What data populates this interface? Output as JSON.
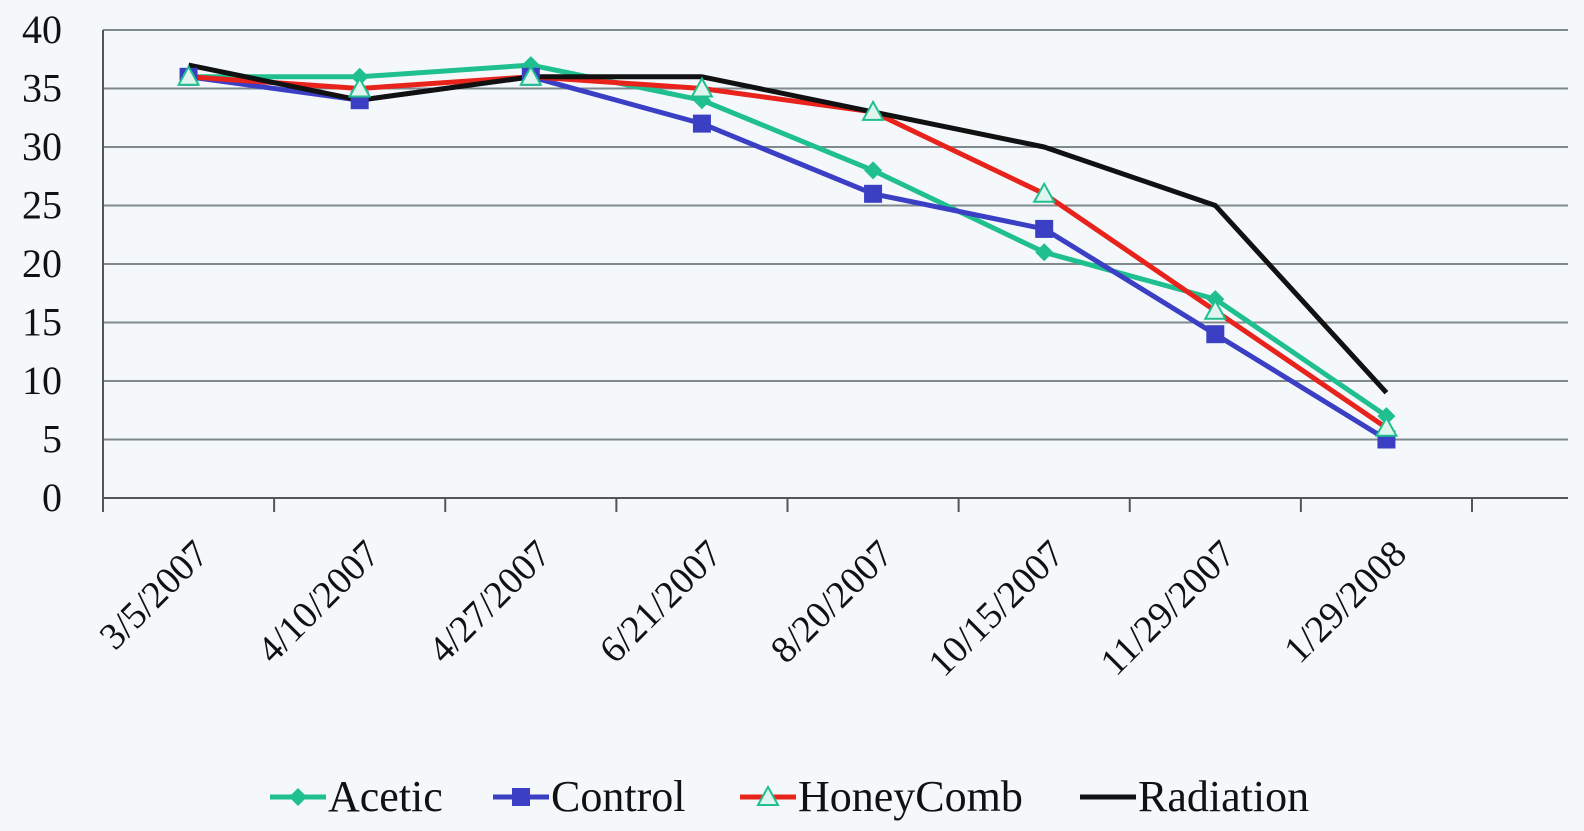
{
  "chart_data": {
    "type": "line",
    "categories": [
      "3/5/2007",
      "4/10/2007",
      "4/27/2007",
      "6/21/2007",
      "8/20/2007",
      "10/15/2007",
      "11/29/2007",
      "1/29/2008"
    ],
    "ylim": [
      0,
      40
    ],
    "yticks": [
      0,
      5,
      10,
      15,
      20,
      25,
      30,
      35,
      40
    ],
    "grid": true,
    "legend": "bottom",
    "series": [
      {
        "name": "Acetic",
        "color": "#1fbf8f",
        "marker": "diamond",
        "values": [
          36,
          36,
          37,
          34,
          28,
          21,
          17,
          7
        ]
      },
      {
        "name": "Control",
        "color": "#3b3fc4",
        "marker": "square",
        "values": [
          36,
          34,
          36,
          32,
          26,
          23,
          14,
          5
        ]
      },
      {
        "name": "HoneyComb",
        "color": "#e8231c",
        "marker": "triangle",
        "values": [
          36,
          35,
          36,
          35,
          33,
          26,
          16,
          6
        ]
      },
      {
        "name": "Radiation",
        "color": "#111111",
        "marker": "none",
        "values": [
          37,
          34,
          36,
          36,
          33,
          30,
          25,
          9
        ]
      }
    ]
  }
}
